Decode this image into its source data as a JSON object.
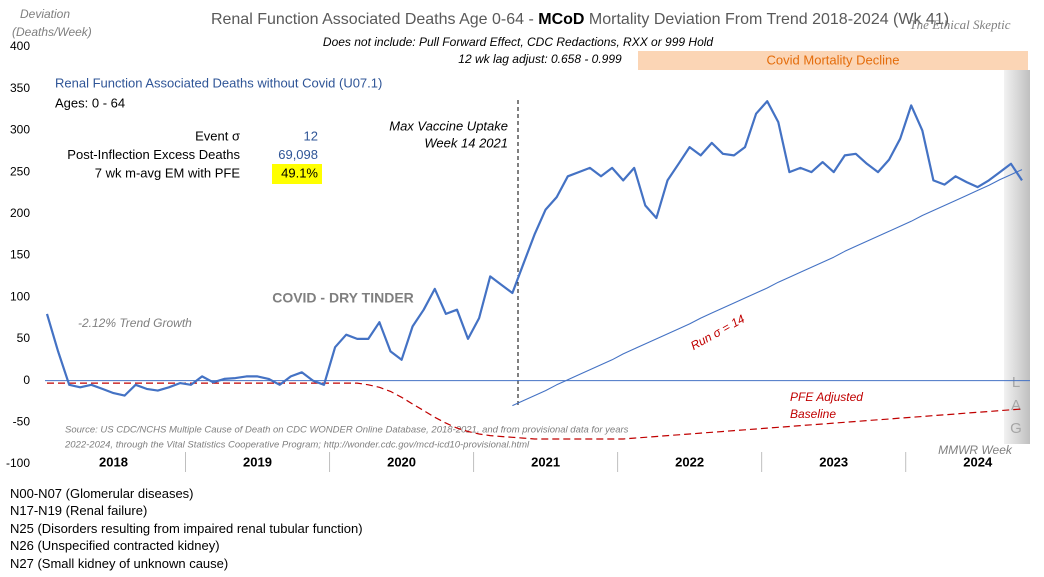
{
  "chart_data": {
    "type": "line",
    "title": [
      "Renal Function Associated Deaths Age 0-64 - ",
      "MCoD",
      " Mortality Deviation From Trend  2018-2024 (Wk 41)"
    ],
    "subtitle": [
      "Does not include: Pull Forward Effect,  CDC Redactions, RXX or 999 Hold",
      "12 wk lag adjust: 0.658 - 0.999"
    ],
    "brand": "The Ethical Skeptic",
    "ylabel": [
      "Deviation",
      "(Deaths/Week)"
    ],
    "xlabel": "MMWR Week",
    "ylim": [
      -100,
      400
    ],
    "yticks": [
      -100,
      -50,
      0,
      50,
      100,
      150,
      200,
      250,
      300,
      350,
      400
    ],
    "categories": [
      null,
      null,
      null,
      null,
      null,
      null,
      "2018",
      null,
      null,
      null,
      null,
      null,
      null,
      null,
      null,
      null,
      null,
      null,
      null,
      "2019",
      null,
      null,
      null,
      null,
      null,
      null,
      null,
      null,
      null,
      null,
      null,
      null,
      "2020",
      null,
      null,
      null,
      null,
      null,
      null,
      null,
      null,
      null,
      null,
      null,
      null,
      "2021",
      null,
      null,
      null,
      null,
      null,
      null,
      null,
      null,
      null,
      null,
      null,
      null,
      "2022",
      null,
      null,
      null,
      null,
      null,
      null,
      null,
      null,
      null,
      null,
      null,
      null,
      "2023",
      null,
      null,
      null,
      null,
      null,
      null,
      null,
      null,
      null,
      null,
      null,
      null,
      "2024",
      null,
      null,
      null,
      null
    ],
    "series": [
      {
        "name": "Renal Function Associated Deaths without Covid (U07.1)",
        "color": "#4472c4",
        "values": [
          80,
          35,
          -5,
          -8,
          -5,
          -10,
          -15,
          -18,
          -5,
          -10,
          -12,
          -8,
          -3,
          -5,
          5,
          -2,
          2,
          3,
          5,
          5,
          2,
          -5,
          5,
          10,
          0,
          -5,
          40,
          55,
          50,
          50,
          70,
          35,
          25,
          65,
          85,
          110,
          80,
          85,
          50,
          75,
          125,
          115,
          105,
          140,
          175,
          205,
          220,
          245,
          250,
          255,
          245,
          255,
          240,
          255,
          210,
          195,
          240,
          260,
          280,
          270,
          285,
          272,
          270,
          280,
          320,
          335,
          310,
          250,
          255,
          250,
          262,
          250,
          270,
          272,
          260,
          250,
          265,
          290,
          330,
          300,
          240,
          235,
          245,
          238,
          232,
          240,
          250,
          260,
          240
        ]
      },
      {
        "color": "#c00000",
        "dashed": true,
        "values": [
          -3,
          -3,
          -3,
          -3,
          -3,
          -3,
          -3,
          -3,
          -3,
          -3,
          -3,
          -3,
          -3,
          -3,
          -3,
          -3,
          -3,
          -3,
          -3,
          -3,
          -3,
          -3,
          -3,
          -3,
          -3,
          -3,
          -3,
          -3,
          -3,
          -5,
          -8,
          -13,
          -20,
          -28,
          -36,
          -44,
          -51,
          -57,
          -61,
          -64,
          -66,
          -67,
          -68,
          -69,
          -70,
          -70,
          -70,
          -70,
          -70,
          -70,
          -70,
          -70,
          -70,
          -69,
          -68,
          -67,
          -66,
          -65,
          -64,
          -63,
          -62,
          -61,
          -60,
          -59,
          -58,
          -57,
          -56,
          -55,
          -54,
          -53,
          -52,
          -51,
          -50,
          -49,
          -48,
          -47,
          -46,
          -45,
          -44,
          -43,
          -42,
          -41,
          -40,
          -39,
          -38,
          -37,
          -36,
          -35,
          -34
        ]
      },
      {
        "color": "#4472c4",
        "values": [
          null,
          null,
          null,
          null,
          null,
          null,
          null,
          null,
          null,
          null,
          null,
          null,
          null,
          null,
          null,
          null,
          null,
          null,
          null,
          null,
          null,
          null,
          null,
          null,
          null,
          null,
          null,
          null,
          null,
          null,
          null,
          null,
          null,
          null,
          null,
          null,
          null,
          null,
          null,
          null,
          null,
          null,
          -30,
          -24,
          -18,
          -12,
          -5,
          1,
          7,
          13,
          19,
          25,
          32,
          38,
          44,
          50,
          56,
          62,
          68,
          75,
          81,
          87,
          93,
          99,
          105,
          111,
          118,
          124,
          130,
          136,
          142,
          148,
          155,
          161,
          167,
          173,
          179,
          185,
          191,
          198,
          204,
          210,
          216,
          222,
          228,
          234,
          241,
          247,
          253
        ]
      }
    ],
    "notes": {
      "ages": "Ages: 0 - 64",
      "vaccine_1": "Max Vaccine Uptake",
      "vaccine_2": "Week 14 2021",
      "tinder": "COVID - DRY TINDER",
      "trend": "-2.12% Trend Growth",
      "run": "Run σ = 14",
      "pfe_1": "PFE Adjusted",
      "pfe_2": "Baseline",
      "decline": "Covid Mortality Decline",
      "lag": [
        "L",
        "A",
        "G"
      ],
      "source": [
        "Source: US CDC/NCHS Multiple Cause of Death on CDC WONDER Online Database, 2018-2021, and from provisional data for years",
        "2022-2024, through the Vital Statistics Cooperative Program; http://wonder.cdc.gov/mcd-icd10-provisional.html"
      ]
    },
    "stats": [
      {
        "label": "Event σ",
        "value": "12"
      },
      {
        "label": "Post-Inflection Excess Deaths",
        "value": "69,098"
      },
      {
        "label": "7 wk m-avg EM with PFE",
        "value": "49.1%",
        "highlight": true
      }
    ]
  },
  "footnotes": [
    "N00-N07 (Glomerular diseases)",
    "N17-N19 (Renal failure)",
    "N25 (Disorders resulting from impaired renal tubular function)",
    "N26 (Unspecified  contracted kidney)",
    "N27 (Small kidney of unknown cause)"
  ]
}
